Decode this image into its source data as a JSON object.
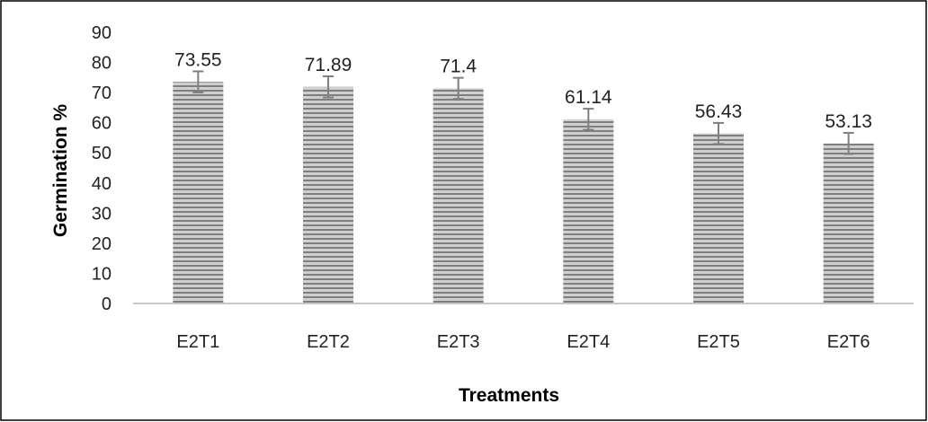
{
  "chart_data": {
    "type": "bar",
    "title": "",
    "xlabel": "Treatments",
    "ylabel": "Germination %",
    "categories": [
      "E2T1",
      "E2T2",
      "E2T3",
      "E2T4",
      "E2T5",
      "E2T6"
    ],
    "values": [
      73.55,
      71.89,
      71.4,
      61.14,
      56.43,
      53.13
    ],
    "data_labels": [
      "73.55",
      "71.89",
      "71.4",
      "61.14",
      "56.43",
      "53.13"
    ],
    "error": [
      3.5,
      3.5,
      3.5,
      3.5,
      3.5,
      3.5
    ],
    "ylim": [
      0,
      90
    ],
    "yticks": [
      0,
      10,
      20,
      30,
      40,
      50,
      60,
      70,
      80,
      90
    ],
    "grid": false,
    "legend": "none",
    "bar_pattern": "horizontal-stripes",
    "bar_colors": {
      "stripe_light": "#cfcfcf",
      "stripe_dark": "#7f7f7f"
    },
    "axis_color": "#c8c8c8",
    "error_bar_color": "#7f7f7f"
  }
}
